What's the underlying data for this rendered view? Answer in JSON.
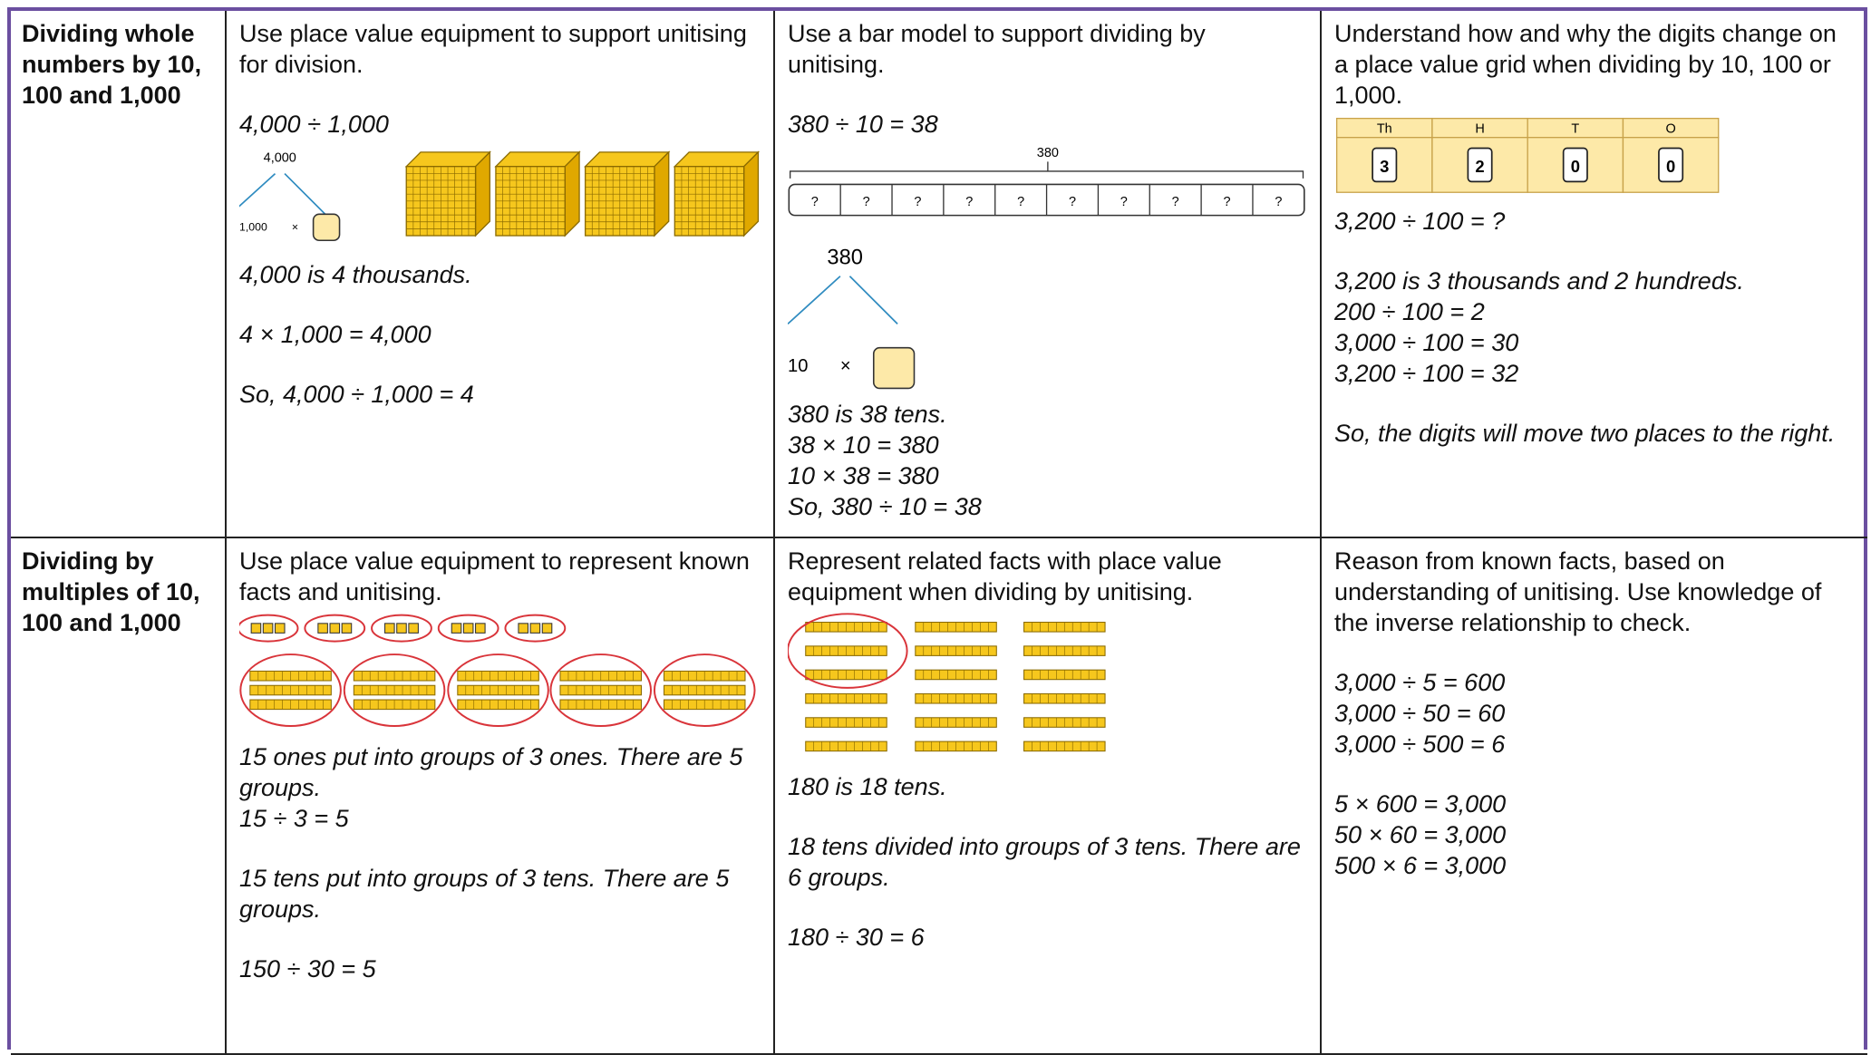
{
  "table": {
    "rows": [
      {
        "heading": "Dividing whole numbers by 10, 100 and 1,000",
        "cells": [
          {
            "intro": "Use place value equipment to support unitising for division.",
            "figure": {
              "whole": "4,000",
              "part": "1,000",
              "times": "×"
            },
            "paragraphs": [
              [
                "4,000 ÷ 1,000"
              ],
              [
                "4,000 is 4 thousands."
              ],
              [
                "4 × 1,000 = 4,000"
              ],
              [
                "So, 4,000 ÷ 1,000 = 4"
              ]
            ]
          },
          {
            "intro": "Use a bar model to support dividing by unitising.",
            "figure": {
              "total": "380",
              "cells": [
                "?",
                "?",
                "?",
                "?",
                "?",
                "?",
                "?",
                "?",
                "?",
                "?"
              ],
              "whole": "380",
              "part": "10",
              "times": "×"
            },
            "paragraphs": [
              [
                "380 ÷ 10 = 38"
              ],
              [
                "380 is 38 tens.",
                "38 × 10 = 380",
                "10 × 38 = 380",
                "So, 380 ÷ 10 = 38"
              ]
            ]
          },
          {
            "intro": "Understand how and why the digits change on a place value grid when dividing by 10, 100 or 1,000.",
            "figure": {
              "headers": [
                "Th",
                "H",
                "T",
                "O"
              ],
              "digits": [
                "3",
                "2",
                "0",
                "0"
              ]
            },
            "paragraphs": [
              [
                "3,200 ÷ 100 = ?"
              ],
              [
                "3,200 is 3 thousands and 2 hundreds.",
                "200 ÷ 100 = 2",
                "3,000 ÷ 100 = 30",
                "3,200 ÷ 100 = 32"
              ],
              [
                "So, the digits will move two places to the right."
              ]
            ]
          }
        ]
      },
      {
        "heading": "Dividing by multiples of 10, 100 and 1,000",
        "cells": [
          {
            "intro": "Use place value equipment to represent known facts and unitising.",
            "paragraphs": [
              [
                "15 ones put into groups of 3 ones. There are 5 groups.",
                "15 ÷ 3 = 5"
              ],
              [
                "15 tens put into groups of 3 tens. There are 5 groups."
              ],
              [
                "150 ÷ 30 = 5"
              ]
            ]
          },
          {
            "intro": "Represent related facts with place value equipment when dividing by unitising.",
            "paragraphs": [
              [
                "180 is 18 tens."
              ],
              [
                "18 tens divided into groups of 3 tens. There are 6 groups."
              ],
              [
                "180 ÷ 30 = 6"
              ]
            ]
          },
          {
            "intro": "Reason from known facts, based on understanding of unitising. Use knowledge of the inverse relationship to check.",
            "paragraphs": [
              [
                "3,000 ÷ 5 = 600",
                "3,000 ÷ 50 = 60",
                "3,000 ÷ 500 = 6"
              ],
              [
                "5 × 600 = 3,000",
                "50 × 60 = 3,000",
                "500 × 6 = 3,000"
              ]
            ]
          }
        ]
      }
    ]
  }
}
